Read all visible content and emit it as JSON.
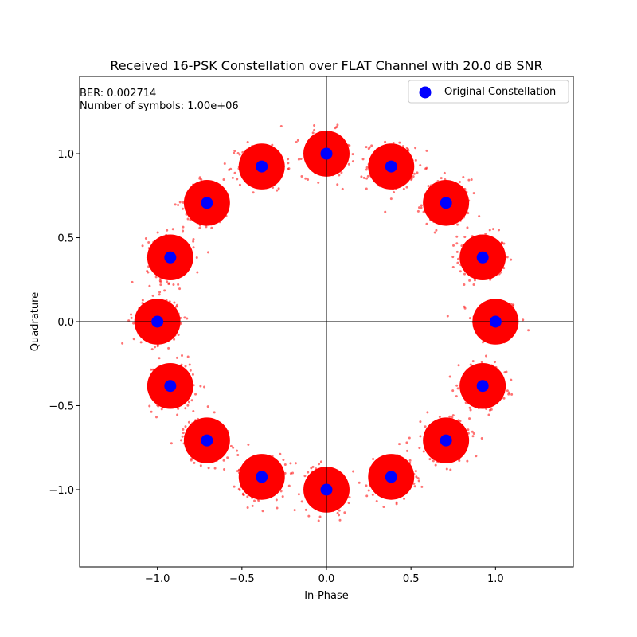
{
  "chart_data": {
    "type": "scatter",
    "title": "Received 16-PSK Constellation over FLAT Channel with 20.0 dB SNR",
    "xlabel": "In-Phase",
    "ylabel": "Quadrature",
    "xlim": [
      -1.46,
      1.46
    ],
    "ylim": [
      -1.46,
      1.46
    ],
    "xticks": [
      -1.0,
      -0.5,
      0.0,
      0.5,
      1.0
    ],
    "xtick_labels": [
      "−1.0",
      "−0.5",
      "0.0",
      "0.5",
      "1.0"
    ],
    "yticks": [
      -1.0,
      -0.5,
      0.0,
      0.5,
      1.0
    ],
    "ytick_labels": [
      "−1.0",
      "−0.5",
      "0.0",
      "0.5",
      "1.0"
    ],
    "grid": false,
    "legend_position": "upper right",
    "annotations": {
      "ber": "BER: 0.002714",
      "symbols": "Number of symbols: 1.00e+06"
    },
    "series": [
      {
        "name": "Original Constellation",
        "color": "#0000ff",
        "points": [
          [
            1.0,
            0.0
          ],
          [
            0.9239,
            0.3827
          ],
          [
            0.7071,
            0.7071
          ],
          [
            0.3827,
            0.9239
          ],
          [
            0.0,
            1.0
          ],
          [
            -0.3827,
            0.9239
          ],
          [
            -0.7071,
            0.7071
          ],
          [
            -0.9239,
            0.3827
          ],
          [
            -1.0,
            0.0
          ],
          [
            -0.9239,
            -0.3827
          ],
          [
            -0.7071,
            -0.7071
          ],
          [
            -0.3827,
            -0.9239
          ],
          [
            0.0,
            -1.0
          ],
          [
            0.3827,
            -0.9239
          ],
          [
            0.7071,
            -0.7071
          ],
          [
            0.9239,
            -0.3827
          ]
        ]
      },
      {
        "color": "#ff0000",
        "noise_std": 0.07,
        "cluster_centers": "same as Original Constellation"
      }
    ]
  }
}
